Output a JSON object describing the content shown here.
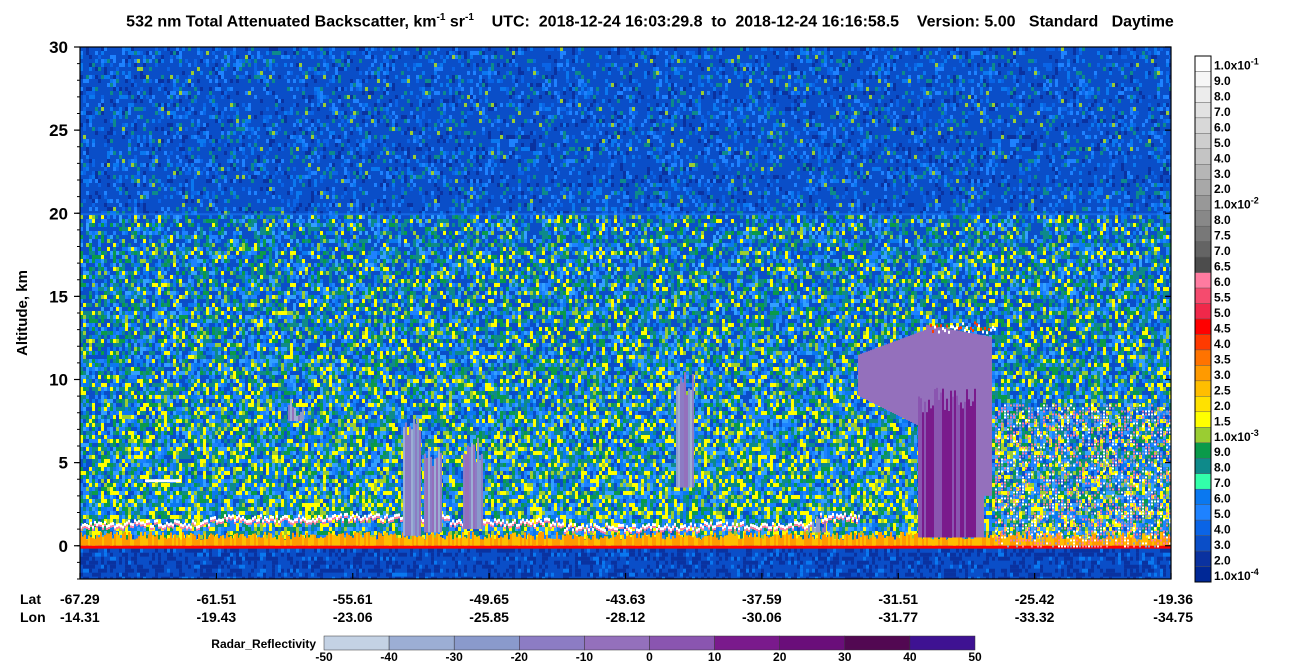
{
  "title": {
    "prefix": "532 nm Total Attenuated Backscatter, km",
    "exp1": "-1",
    "mid": " sr",
    "exp2": "-1",
    "utc_label": "UTC:",
    "utc_start": "2018-12-24 16:03:29.8",
    "to": "to",
    "utc_end": "2018-12-24 16:16:58.5",
    "version_label": "Version: 5.00",
    "standard": "Standard",
    "daytime": "Daytime"
  },
  "chart_data": {
    "type": "heatmap",
    "ylabel": "Altitude, km",
    "ylim": [
      -2,
      30
    ],
    "y_ticks": [
      "30",
      "25",
      "20",
      "15",
      "10",
      "5",
      "0"
    ],
    "y_tick_values": [
      30,
      25,
      20,
      15,
      10,
      5,
      0
    ],
    "x_row_labels": [
      "Lat",
      "Lon"
    ],
    "x_ticks": [
      {
        "lat": "-67.29",
        "lon": "-14.31"
      },
      {
        "lat": "-61.51",
        "lon": "-19.43"
      },
      {
        "lat": "-55.61",
        "lon": "-23.06"
      },
      {
        "lat": "-49.65",
        "lon": "-25.85"
      },
      {
        "lat": "-43.63",
        "lon": "-28.12"
      },
      {
        "lat": "-37.59",
        "lon": "-30.06"
      },
      {
        "lat": "-31.51",
        "lon": "-31.77"
      },
      {
        "lat": "-25.42",
        "lon": "-33.32"
      },
      {
        "lat": "-19.36",
        "lon": "-34.75"
      }
    ],
    "backscatter_colorbar": {
      "labels": [
        "1.0x10-1",
        "9.0",
        "8.0",
        "7.0",
        "6.0",
        "5.0",
        "4.0",
        "3.0",
        "2.0",
        "1.0x10-2",
        "8.0",
        "7.5",
        "7.0",
        "6.5",
        "6.0",
        "5.5",
        "5.0",
        "4.5",
        "4.0",
        "3.5",
        "3.0",
        "2.5",
        "2.0",
        "1.5",
        "1.0x10-3",
        "9.0",
        "8.0",
        "7.0",
        "6.0",
        "5.0",
        "4.0",
        "3.0",
        "2.0",
        "1.0x10-4"
      ],
      "colors": [
        "#ffffff",
        "#f6f6f6",
        "#ececec",
        "#e2e2e2",
        "#d8d8d8",
        "#cecece",
        "#c4c4c4",
        "#b6b6b6",
        "#a8a8a8",
        "#989898",
        "#888888",
        "#787878",
        "#646464",
        "#4c4c4c",
        "#ff7ba0",
        "#f54b6e",
        "#f0284a",
        "#ff0000",
        "#ff3a00",
        "#ff7300",
        "#ff9a00",
        "#ffbe00",
        "#ffe100",
        "#ffff00",
        "#9acd32",
        "#0a9a4a",
        "#0e8a8a",
        "#32ffaa",
        "#0a78f0",
        "#1e82ff",
        "#0a64e6",
        "#0a4ec8",
        "#0a32a0",
        "#002896"
      ]
    },
    "radar_colorbar": {
      "label": "Radar_Reflectivity",
      "ticks": [
        "-50",
        "-40",
        "-30",
        "-20",
        "-10",
        "0",
        "10",
        "20",
        "30",
        "40",
        "50"
      ],
      "colors": [
        "#c4d2e4",
        "#9caed4",
        "#8a9acc",
        "#8c7cc4",
        "#9470bc",
        "#8a55b0",
        "#7a1a8c",
        "#6a0e7a",
        "#520852",
        "#3e1292"
      ]
    },
    "features": {
      "cloud_top_km": 13.5,
      "cloud_base_km": 0.5,
      "surface_km": 0,
      "stratosphere_boundary_km": 20
    }
  }
}
